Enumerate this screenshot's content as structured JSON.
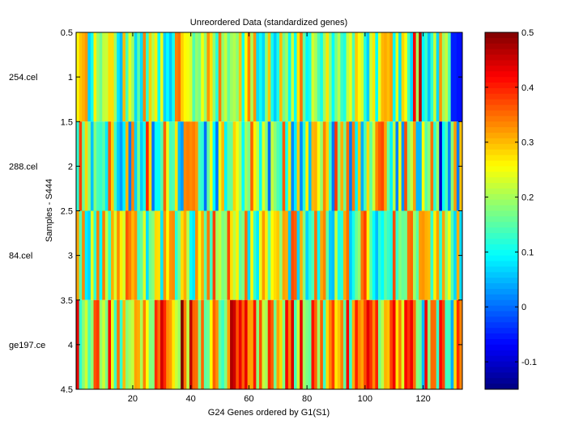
{
  "chart_data": {
    "type": "heatmap",
    "title": "Unreordered Data (standardized genes)",
    "xlabel": "G24 Genes ordered by G1(S1)",
    "ylabel": "Samples - S444",
    "n_genes": 133,
    "xlim": [
      0.5,
      133.5
    ],
    "ylim": [
      4.5,
      0.5
    ],
    "xticks": [
      20,
      40,
      60,
      80,
      100,
      120
    ],
    "yticks": [
      0.5,
      1,
      1.5,
      2,
      2.5,
      3,
      3.5,
      4,
      4.5
    ],
    "ytick_labels": [
      "0.5",
      "1",
      "1.5",
      "2",
      "2.5",
      "3",
      "3.5",
      "4",
      "4.5"
    ],
    "samples": [
      "254.cel",
      "288.cel",
      "84.cel",
      "ge197.ce"
    ],
    "colorbar": {
      "colormap": "jet",
      "clim": [
        -0.15,
        0.5
      ],
      "ticks": [
        -0.1,
        0,
        0.1,
        0.2,
        0.3,
        0.4,
        0.5
      ],
      "tick_labels": [
        "-0.1",
        "0",
        "0.1",
        "0.2",
        "0.3",
        "0.4",
        "0.5"
      ]
    },
    "row_value_range": [
      [
        0.05,
        0.35
      ],
      [
        0.0,
        0.4
      ],
      [
        0.05,
        0.38
      ],
      [
        0.12,
        0.45
      ]
    ],
    "overrides": [
      {
        "row": 0,
        "gene": 117,
        "value": 0.42
      },
      {
        "row": 0,
        "gene": 119,
        "value": 0.46
      },
      {
        "row": 0,
        "gene": 130,
        "value": -0.05
      },
      {
        "row": 0,
        "gene": 131,
        "value": -0.05
      },
      {
        "row": 0,
        "gene": 132,
        "value": -0.06
      },
      {
        "row": 0,
        "gene": 133,
        "value": -0.06
      },
      {
        "row": 1,
        "gene": 38,
        "value": 0.33
      },
      {
        "row": 1,
        "gene": 39,
        "value": 0.34
      },
      {
        "row": 1,
        "gene": 40,
        "value": 0.33
      },
      {
        "row": 1,
        "gene": 41,
        "value": 0.34
      },
      {
        "row": 1,
        "gene": 42,
        "value": 0.32
      },
      {
        "row": 1,
        "gene": 78,
        "value": 0.02
      },
      {
        "row": 1,
        "gene": 126,
        "value": -0.1
      },
      {
        "row": 1,
        "gene": 132,
        "value": 0.01
      },
      {
        "row": 3,
        "gene": 37,
        "value": 0.5
      },
      {
        "row": 3,
        "gene": 40,
        "value": 0.46
      },
      {
        "row": 3,
        "gene": 54,
        "value": 0.47
      },
      {
        "row": 3,
        "gene": 55,
        "value": 0.45
      },
      {
        "row": 3,
        "gene": 120,
        "value": 0.05
      },
      {
        "row": 3,
        "gene": 130,
        "value": 0.04
      }
    ]
  }
}
